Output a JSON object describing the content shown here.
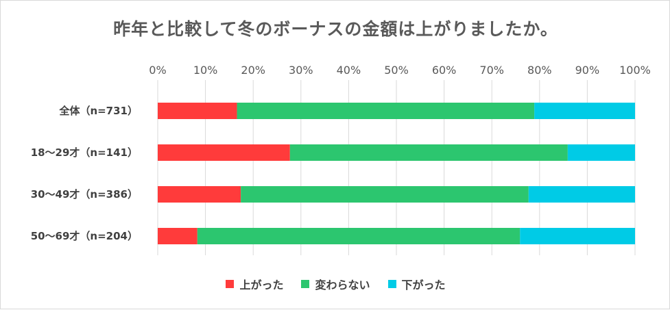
{
  "chart_data": {
    "type": "bar",
    "orientation": "horizontal",
    "stacked": true,
    "percent": true,
    "title": "昨年と比較して冬のボーナスの金額は上がりましたか。",
    "categories": [
      "全体（n=731）",
      "18～29才（n=141）",
      "30～49才（n=386）",
      "50～69才（n=204）"
    ],
    "series": [
      {
        "name": "上がった",
        "color": "#ff3b3b",
        "values": [
          16.6,
          27.7,
          17.4,
          8.3
        ]
      },
      {
        "name": "変わらない",
        "color": "#2cc66f",
        "values": [
          62.3,
          58.2,
          60.3,
          67.6
        ]
      },
      {
        "name": "下がった",
        "color": "#00cbe6",
        "values": [
          21.1,
          14.1,
          22.3,
          24.1
        ]
      }
    ],
    "xticks": [
      "0%",
      "10%",
      "20%",
      "30%",
      "40%",
      "50%",
      "60%",
      "70%",
      "80%",
      "90%",
      "100%"
    ],
    "xlim": [
      0,
      100
    ],
    "grid": true,
    "legend": "bottom"
  }
}
